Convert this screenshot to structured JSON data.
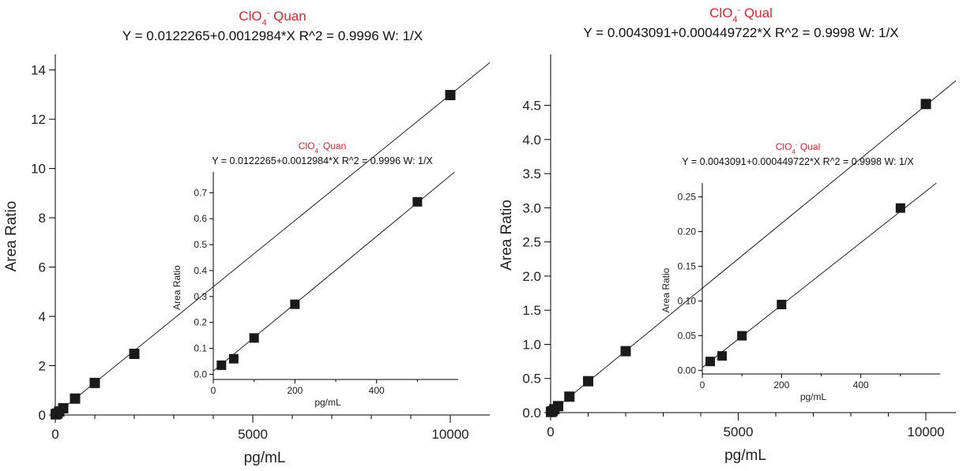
{
  "chart_data": [
    {
      "type": "scatter",
      "title_species": "ClO",
      "title_sub": "4",
      "title_sup": "-",
      "title_suffix": " Quan",
      "equation": "Y = 0.0122265+0.0012984*X   R^2 = 0.9996   W: 1/X",
      "xlabel": "pg/mL",
      "ylabel": "Area Ratio",
      "xlim": [
        0,
        11000
      ],
      "ylim": [
        0,
        14.5
      ],
      "x_ticks": [
        0,
        5000,
        10000
      ],
      "y_ticks": [
        0,
        2,
        4,
        6,
        8,
        10,
        12,
        14
      ],
      "fit": {
        "intercept": 0.0122265,
        "slope": 0.0012984
      },
      "points": [
        {
          "x": 10,
          "y": 0.025
        },
        {
          "x": 20,
          "y": 0.038
        },
        {
          "x": 50,
          "y": 0.06
        },
        {
          "x": 100,
          "y": 0.14
        },
        {
          "x": 200,
          "y": 0.27
        },
        {
          "x": 500,
          "y": 0.665
        },
        {
          "x": 1000,
          "y": 1.3
        },
        {
          "x": 2000,
          "y": 2.48
        },
        {
          "x": 10000,
          "y": 12.98
        }
      ],
      "inset": {
        "title_species": "ClO",
        "title_sub": "4",
        "title_sup": "-",
        "title_suffix": " Quan",
        "equation": "Y = 0.0122265+0.0012984*X   R^2 = 0.9996   W: 1/X",
        "xlabel": "pg/mL",
        "ylabel": "Area Ratio",
        "xlim": [
          0,
          600
        ],
        "ylim": [
          -0.02,
          0.78
        ],
        "x_ticks": [
          0,
          200,
          400
        ],
        "y_ticks": [
          0.0,
          0.1,
          0.2,
          0.3,
          0.4,
          0.5,
          0.6,
          0.7
        ],
        "points": [
          {
            "x": 20,
            "y": 0.035
          },
          {
            "x": 50,
            "y": 0.06
          },
          {
            "x": 100,
            "y": 0.14
          },
          {
            "x": 200,
            "y": 0.27
          },
          {
            "x": 500,
            "y": 0.665
          }
        ]
      }
    },
    {
      "type": "scatter",
      "title_species": "ClO",
      "title_sub": "4",
      "title_sup": "-",
      "title_suffix": " Qual",
      "equation": "Y = 0.0043091+0.000449722*X   R^2 = 0.9998   W: 1/X",
      "xlabel": "pg/mL",
      "ylabel": "Area Ratio",
      "xlim": [
        0,
        10800
      ],
      "ylim": [
        0,
        5.2
      ],
      "x_ticks": [
        0,
        5000,
        10000
      ],
      "y_ticks": [
        0.0,
        0.5,
        1.0,
        1.5,
        2.0,
        2.5,
        3.0,
        3.5,
        4.0,
        4.5
      ],
      "fit": {
        "intercept": 0.0043091,
        "slope": 0.000449722
      },
      "points": [
        {
          "x": 10,
          "y": 0.009
        },
        {
          "x": 20,
          "y": 0.013
        },
        {
          "x": 50,
          "y": 0.022
        },
        {
          "x": 100,
          "y": 0.05
        },
        {
          "x": 200,
          "y": 0.095
        },
        {
          "x": 500,
          "y": 0.234
        },
        {
          "x": 1000,
          "y": 0.46
        },
        {
          "x": 2000,
          "y": 0.9
        },
        {
          "x": 10000,
          "y": 4.52
        }
      ],
      "inset": {
        "title_species": "ClO",
        "title_sub": "4",
        "title_sup": "-",
        "title_suffix": " Qual",
        "equation": "Y = 0.0043091+0.000449722*X   R^2 = 0.9998   W: 1/X",
        "xlabel": "pg/mL",
        "ylabel": "Area Ratio",
        "xlim": [
          0,
          600
        ],
        "ylim": [
          -0.005,
          0.27
        ],
        "x_ticks": [
          0,
          200,
          400
        ],
        "y_ticks": [
          0.0,
          0.05,
          0.1,
          0.15,
          0.2,
          0.25
        ],
        "points": [
          {
            "x": 20,
            "y": 0.013
          },
          {
            "x": 50,
            "y": 0.021
          },
          {
            "x": 100,
            "y": 0.05
          },
          {
            "x": 200,
            "y": 0.095
          },
          {
            "x": 500,
            "y": 0.234
          }
        ]
      }
    }
  ]
}
